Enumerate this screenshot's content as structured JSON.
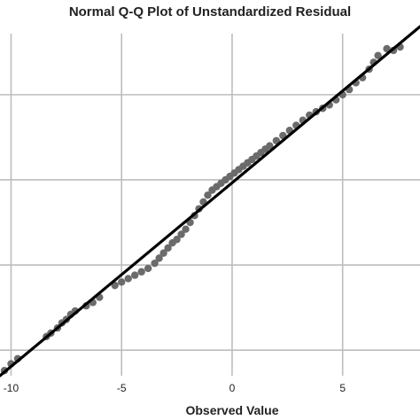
{
  "colors": {
    "point": "#6b6b6b",
    "reference_line": "#000000",
    "grid": "#bdbdbd",
    "background": "#ffffff"
  },
  "chart_data": {
    "type": "scatter",
    "title": "Normal Q-Q Plot of Unstandardized Residual",
    "xlabel": "Observed Value",
    "ylabel": "",
    "xlim": [
      -10.5,
      8.5
    ],
    "ylim": [
      -11.5,
      9.0
    ],
    "x_ticks": [
      -10,
      -5,
      0,
      5
    ],
    "x_tick_labels": [
      "-10",
      "-5",
      "0",
      "5"
    ],
    "y_gridlines": [
      -10,
      -5,
      0,
      5
    ],
    "grid": true,
    "legend": "none",
    "reference_line": {
      "x": [
        -10.5,
        8.5
      ],
      "y": [
        -11.5,
        9.0
      ]
    },
    "series": [
      {
        "values": [
          [
            -10.3,
            -11.2
          ],
          [
            -10.0,
            -10.8
          ],
          [
            -9.7,
            -10.5
          ],
          [
            -8.4,
            -9.2
          ],
          [
            -8.2,
            -9.0
          ],
          [
            -7.9,
            -8.7
          ],
          [
            -7.7,
            -8.4
          ],
          [
            -7.5,
            -8.2
          ],
          [
            -7.3,
            -7.9
          ],
          [
            -7.1,
            -7.7
          ],
          [
            -6.6,
            -7.4
          ],
          [
            -6.3,
            -7.2
          ],
          [
            -6.0,
            -6.9
          ],
          [
            -5.3,
            -6.2
          ],
          [
            -5.0,
            -6.0
          ],
          [
            -4.7,
            -5.8
          ],
          [
            -4.4,
            -5.6
          ],
          [
            -4.1,
            -5.4
          ],
          [
            -3.8,
            -5.2
          ],
          [
            -3.5,
            -4.9
          ],
          [
            -3.3,
            -4.6
          ],
          [
            -3.1,
            -4.3
          ],
          [
            -2.9,
            -4.0
          ],
          [
            -2.7,
            -3.7
          ],
          [
            -2.5,
            -3.5
          ],
          [
            -2.3,
            -3.2
          ],
          [
            -2.1,
            -2.9
          ],
          [
            -1.9,
            -2.5
          ],
          [
            -1.7,
            -2.1
          ],
          [
            -1.5,
            -1.7
          ],
          [
            -1.3,
            -1.3
          ],
          [
            -1.1,
            -0.9
          ],
          [
            -0.9,
            -0.6
          ],
          [
            -0.7,
            -0.4
          ],
          [
            -0.5,
            -0.2
          ],
          [
            -0.3,
            0.0
          ],
          [
            -0.1,
            0.2
          ],
          [
            0.1,
            0.4
          ],
          [
            0.3,
            0.6
          ],
          [
            0.5,
            0.8
          ],
          [
            0.7,
            1.0
          ],
          [
            0.9,
            1.2
          ],
          [
            1.1,
            1.4
          ],
          [
            1.3,
            1.6
          ],
          [
            1.5,
            1.8
          ],
          [
            1.7,
            2.0
          ],
          [
            2.0,
            2.3
          ],
          [
            2.3,
            2.6
          ],
          [
            2.6,
            2.9
          ],
          [
            2.9,
            3.2
          ],
          [
            3.2,
            3.5
          ],
          [
            3.5,
            3.8
          ],
          [
            3.8,
            4.0
          ],
          [
            4.1,
            4.2
          ],
          [
            4.4,
            4.4
          ],
          [
            4.7,
            4.7
          ],
          [
            5.0,
            5.0
          ],
          [
            5.3,
            5.3
          ],
          [
            5.6,
            5.7
          ],
          [
            5.9,
            6.0
          ],
          [
            6.2,
            6.5
          ],
          [
            6.4,
            6.9
          ],
          [
            6.6,
            7.3
          ],
          [
            7.0,
            7.7
          ],
          [
            7.3,
            7.6
          ],
          [
            7.6,
            7.8
          ]
        ]
      }
    ]
  }
}
